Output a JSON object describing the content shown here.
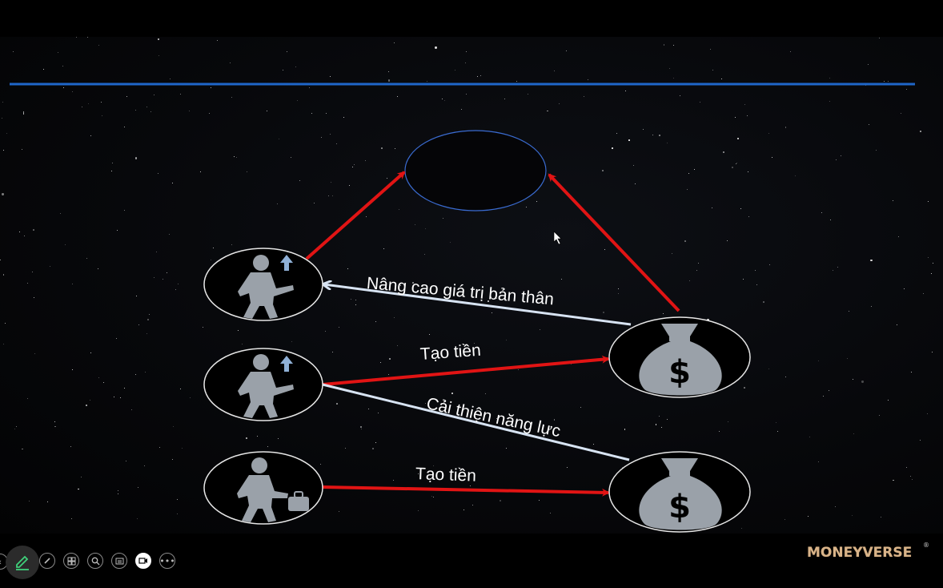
{
  "diagram": {
    "labels": {
      "top_arrow": "Nâng cao giá trị bản thân",
      "middle_red": "Tạo tiền",
      "middle_white": "Cải thiện năng lực",
      "bottom_red": "Tạo tiền"
    },
    "colors": {
      "red_arrow": "#e11414",
      "white_arrow": "#d7e3f2",
      "ellipse_stroke": "#e6e6e6",
      "goal_stroke": "#3a6bd0",
      "icon_fill": "#9aa1a9",
      "rule_line": "#1f66c9"
    },
    "icons": [
      "person-up-icon",
      "person-up-icon",
      "person-briefcase-icon",
      "money-bag-icon",
      "money-bag-icon"
    ]
  },
  "logo": {
    "text": "MONEYVERSE",
    "mark": "®"
  }
}
